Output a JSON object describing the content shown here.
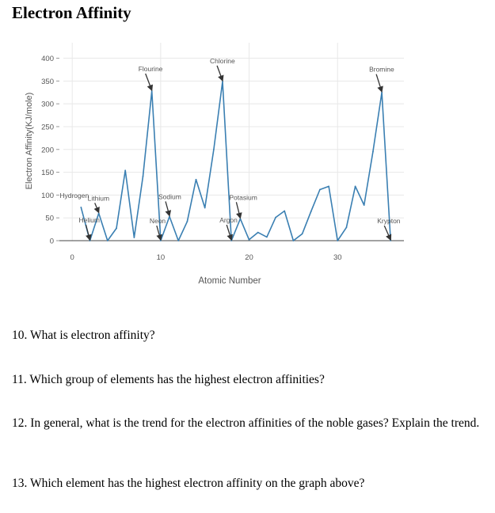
{
  "page": {
    "title": "Electron Affinity"
  },
  "questions": [
    "10.  What is electron affinity?",
    "11.  Which group of elements has the highest electron affinities?",
    "12. In general, what is the trend for the electron affinities of the noble gases? Explain the trend.",
    "13.  Which element has the highest electron affinity on the graph above?"
  ],
  "colors": {
    "line": "#3a7fb2",
    "grid": "#e8e8e8",
    "axis_text": "#555555",
    "arrow": "#333333"
  },
  "chart_data": {
    "type": "line",
    "title": "",
    "xlabel": "Atomic Number",
    "ylabel": "Electron Affinity(KJ/mole)",
    "xlim": [
      -1,
      37.5
    ],
    "ylim": [
      0,
      420
    ],
    "x_ticks": [
      0,
      10,
      20,
      30
    ],
    "y_ticks": [
      0,
      50,
      100,
      150,
      200,
      250,
      300,
      350,
      400
    ],
    "grid": true,
    "legend": "none",
    "series": [
      {
        "x": [
          1,
          2,
          3,
          4,
          5,
          6,
          7,
          8,
          9,
          10,
          11,
          12,
          13,
          14,
          15,
          16,
          17,
          18,
          19,
          20,
          21,
          22,
          23,
          24,
          25,
          26,
          27,
          28,
          29,
          30,
          31,
          32,
          33,
          34,
          35,
          36
        ],
        "values": [
          73,
          0,
          60,
          0,
          27,
          154,
          7,
          141,
          328,
          0,
          53,
          0,
          42,
          134,
          72,
          200,
          349,
          0,
          48,
          2,
          18,
          8,
          51,
          65,
          0,
          15,
          64,
          112,
          119,
          0,
          29,
          119,
          78,
          195,
          325,
          0
        ]
      }
    ],
    "annotations": [
      {
        "text": "Hydrogen",
        "x": 1,
        "y": 73,
        "label_dx": -18,
        "label_dy": -10,
        "arrow": false
      },
      {
        "text": "Lithium",
        "x": 3,
        "y": 60,
        "label_dx": -5,
        "label_dy": -14,
        "arrow": true
      },
      {
        "text": "Helium",
        "x": 2,
        "y": 0,
        "label_dx": -5,
        "label_dy": -21,
        "arrow": true
      },
      {
        "text": "Flourine",
        "x": 9,
        "y": 328,
        "label_dx": -8,
        "label_dy": -23,
        "arrow": true
      },
      {
        "text": "Sodium",
        "x": 11,
        "y": 53,
        "label_dx": -5,
        "label_dy": -20,
        "arrow": true
      },
      {
        "text": "Neon",
        "x": 10,
        "y": 0,
        "label_dx": -5,
        "label_dy": -20,
        "arrow": true
      },
      {
        "text": "Chlorine",
        "x": 17,
        "y": 349,
        "label_dx": -7,
        "label_dy": -21,
        "arrow": true
      },
      {
        "text": "Potasium",
        "x": 19,
        "y": 48,
        "label_dx": -5,
        "label_dy": -22,
        "arrow": true
      },
      {
        "text": "Argon",
        "x": 18,
        "y": 0,
        "label_dx": -6,
        "label_dy": -21,
        "arrow": true
      },
      {
        "text": "Bromine",
        "x": 35,
        "y": 325,
        "label_dx": -7,
        "label_dy": -24,
        "arrow": true
      },
      {
        "text": "Krypton",
        "x": 36,
        "y": 0,
        "label_dx": -8,
        "label_dy": -20,
        "arrow": true
      }
    ]
  }
}
